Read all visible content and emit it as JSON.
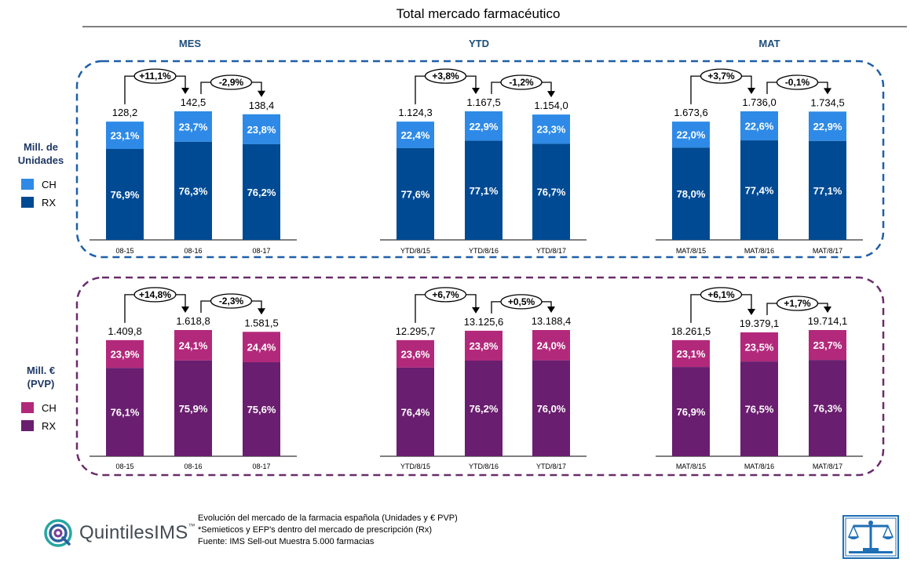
{
  "title": "Total mercado farmacéutico",
  "column_headers": [
    "MES",
    "YTD",
    "MAT"
  ],
  "colors": {
    "units_ch": "#2e8ae6",
    "units_rx": "#004a93",
    "units_border": "#1f5fa8",
    "euro_ch": "#b2297b",
    "euro_rx": "#6a1e6f",
    "euro_border": "#6a2c6a"
  },
  "legend": {
    "units": {
      "title_line1": "Mill. de",
      "title_line2": "Unidades",
      "ch": "CH",
      "rx": "RX"
    },
    "euro": {
      "title_line1": "Mill. €",
      "title_line2": "(PVP)",
      "ch": "CH",
      "rx": "RX"
    }
  },
  "chart_data": [
    {
      "type": "bar",
      "stacked": true,
      "row": "units",
      "group": "MES",
      "categories": [
        "08-15",
        "08-16",
        "08-17"
      ],
      "totals": [
        "128,2",
        "142,5",
        "138,4"
      ],
      "series": [
        {
          "name": "RX",
          "values": [
            "76,9%",
            "76,3%",
            "76,2%"
          ]
        },
        {
          "name": "CH",
          "values": [
            "23,1%",
            "23,7%",
            "23,8%"
          ]
        }
      ],
      "growth": [
        "+11,1%",
        "-2,9%"
      ]
    },
    {
      "type": "bar",
      "stacked": true,
      "row": "units",
      "group": "YTD",
      "categories": [
        "YTD/8/15",
        "YTD/8/16",
        "YTD/8/17"
      ],
      "totals": [
        "1.124,3",
        "1.167,5",
        "1.154,0"
      ],
      "series": [
        {
          "name": "RX",
          "values": [
            "77,6%",
            "77,1%",
            "76,7%"
          ]
        },
        {
          "name": "CH",
          "values": [
            "22,4%",
            "22,9%",
            "23,3%"
          ]
        }
      ],
      "growth": [
        "+3,8%",
        "-1,2%"
      ]
    },
    {
      "type": "bar",
      "stacked": true,
      "row": "units",
      "group": "MAT",
      "categories": [
        "MAT/8/15",
        "MAT/8/16",
        "MAT/8/17"
      ],
      "totals": [
        "1.673,6",
        "1.736,0",
        "1.734,5"
      ],
      "series": [
        {
          "name": "RX",
          "values": [
            "78,0%",
            "77,4%",
            "77,1%"
          ]
        },
        {
          "name": "CH",
          "values": [
            "22,0%",
            "22,6%",
            "22,9%"
          ]
        }
      ],
      "growth": [
        "+3,7%",
        "-0,1%"
      ]
    },
    {
      "type": "bar",
      "stacked": true,
      "row": "euro",
      "group": "MES",
      "categories": [
        "08-15",
        "08-16",
        "08-17"
      ],
      "totals": [
        "1.409,8",
        "1.618,8",
        "1.581,5"
      ],
      "series": [
        {
          "name": "RX",
          "values": [
            "76,1%",
            "75,9%",
            "75,6%"
          ]
        },
        {
          "name": "CH",
          "values": [
            "23,9%",
            "24,1%",
            "24,4%"
          ]
        }
      ],
      "growth": [
        "+14,8%",
        "-2,3%"
      ]
    },
    {
      "type": "bar",
      "stacked": true,
      "row": "euro",
      "group": "YTD",
      "categories": [
        "YTD/8/15",
        "YTD/8/16",
        "YTD/8/17"
      ],
      "totals": [
        "12.295,7",
        "13.125,6",
        "13.188,4"
      ],
      "series": [
        {
          "name": "RX",
          "values": [
            "76,4%",
            "76,2%",
            "76,0%"
          ]
        },
        {
          "name": "CH",
          "values": [
            "23,6%",
            "23,8%",
            "24,0%"
          ]
        }
      ],
      "growth": [
        "+6,7%",
        "+0,5%"
      ]
    },
    {
      "type": "bar",
      "stacked": true,
      "row": "euro",
      "group": "MAT",
      "categories": [
        "MAT/8/15",
        "MAT/8/16",
        "MAT/8/17"
      ],
      "totals": [
        "18.261,5",
        "19.379,1",
        "19.714,1"
      ],
      "series": [
        {
          "name": "RX",
          "values": [
            "76,9%",
            "76,5%",
            "76,3%"
          ]
        },
        {
          "name": "CH",
          "values": [
            "23,1%",
            "23,5%",
            "23,7%"
          ]
        }
      ],
      "growth": [
        "+6,1%",
        "+1,7%"
      ]
    }
  ],
  "footer": {
    "line1": "Evolución del mercado de la farmacia española (Unidades y € PVP)",
    "line2": "*Semieticos y EFP's dentro del mercado de prescripción (Rx)",
    "line3": "Fuente: IMS Sell-out Muestra 5.000 farmacias"
  },
  "logo": {
    "name": "QuintilesIMS",
    "tm": "™"
  }
}
